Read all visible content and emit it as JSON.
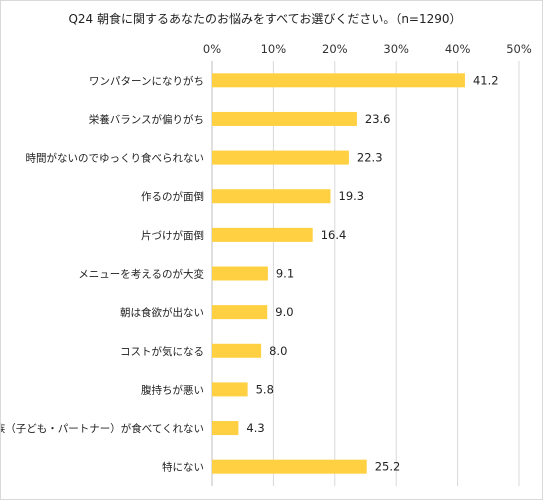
{
  "chart_data": {
    "type": "bar",
    "orientation": "horizontal",
    "title": "Q24 朝食に関するあなたのお悩みをすべてお選びください。（n=1290）",
    "categories": [
      "ワンパターンになりがち",
      "栄養バランスが偏りがち",
      "時間がないのでゆっくり食べられない",
      "作るのが面倒",
      "片づけが面倒",
      "メニューを考えるのが大変",
      "朝は食欲が出ない",
      "コストが気になる",
      "腹持ちが悪い",
      "家族（子ども・パートナー）が食べてくれない",
      "特にない"
    ],
    "values": [
      41.2,
      23.6,
      22.3,
      19.3,
      16.4,
      9.1,
      9.0,
      8.0,
      5.8,
      4.3,
      25.2
    ],
    "value_labels": [
      "41.2",
      "23.6",
      "22.3",
      "19.3",
      "16.4",
      "9.1",
      "9.0",
      "8.0",
      "5.8",
      "4.3",
      "25.2"
    ],
    "xlim": [
      0,
      50
    ],
    "x_ticks": [
      0,
      10,
      20,
      30,
      40,
      50
    ],
    "x_tick_labels": [
      "0%",
      "10%",
      "20%",
      "30%",
      "40%",
      "50%"
    ],
    "xlabel": "",
    "ylabel": "",
    "axis_position": "top",
    "grid": true,
    "legend": "none",
    "bar_color": "#ffd042",
    "grid_color": "#d9d9d9",
    "text_color": "#222222"
  }
}
